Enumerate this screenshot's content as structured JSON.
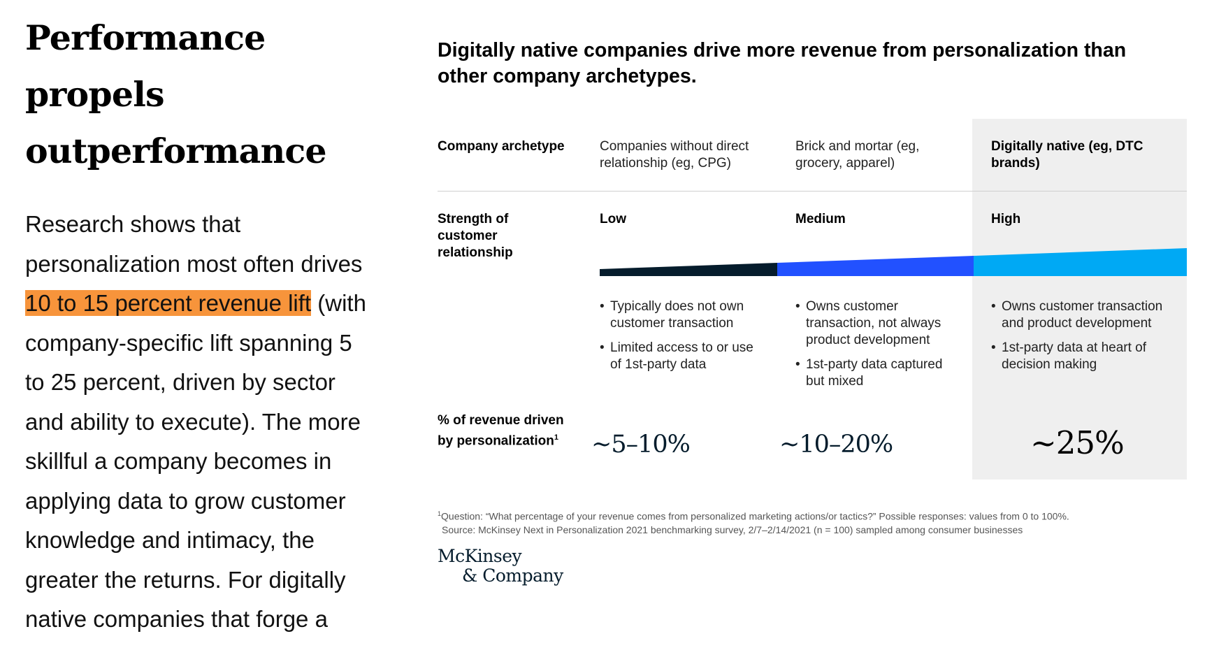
{
  "article": {
    "headline_lines": [
      "Performance",
      "propels",
      "outperformance"
    ],
    "body_before": "Research shows that personalization most often drives ",
    "body_highlight": "10 to 15 percent revenue lift",
    "body_after": " (with company-specific lift spanning 5 to 25 percent, driven by sector and ability to execute). The more skillful a company becomes in applying data to grow customer knowledge and intimacy, the greater the returns. For digitally native companies that forge a"
  },
  "exhibit": {
    "title": "Digitally native companies drive more revenue from personalization than other company archetypes.",
    "rows": {
      "archetype_label": "Company archetype",
      "strength_label": "Strength of customer relationship",
      "revenue_label": "% of revenue driven by personalization",
      "revenue_label_sup": "1"
    },
    "columns": [
      {
        "archetype": "Companies without direct relationship (eg, CPG)",
        "strength": "Low",
        "bullets": [
          "Typically does not own customer transaction",
          "Limited access to or use of 1st-party data"
        ],
        "revenue_pct": "~5–10%"
      },
      {
        "archetype": "Brick and mortar (eg, grocery, apparel)",
        "strength": "Medium",
        "bullets": [
          "Owns customer transaction, not always product development",
          "1st-party data captured but mixed"
        ],
        "revenue_pct": "~10–20%"
      },
      {
        "archetype": "Digitally native (eg, DTC brands)",
        "strength": "High",
        "bullets": [
          "Owns customer transaction and product development",
          "1st-party data at heart of decision making"
        ],
        "revenue_pct": "~25%"
      }
    ],
    "wedge_colors": [
      "#051c2c",
      "#2251ff",
      "#00a9f4"
    ],
    "footnote_sup": "1",
    "footnote_line1": "Question: “What percentage of your revenue comes from personalized marketing actions/or tactics?” Possible responses: values from 0 to 100%.",
    "footnote_line2": "Source: McKinsey Next in Personalization 2021 benchmarking survey, 2/7–2/14/2021 (n = 100) sampled among consumer businesses",
    "logo_line1": "McKinsey",
    "logo_line2": "& Company"
  }
}
